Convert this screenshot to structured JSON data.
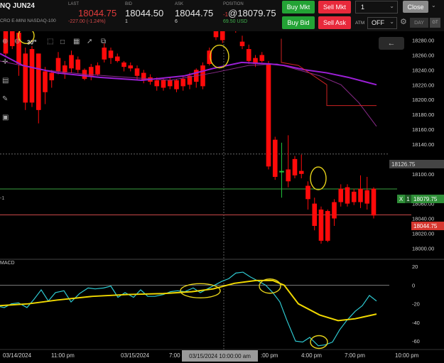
{
  "header": {
    "symbol": "NQ JUN24",
    "symbol_sub": "CRO E-MINI NASDAQ-100",
    "last_label": "LAST",
    "last_value": "18044.75",
    "last_change": "-227.00 (-1.24%)",
    "bid_label": "BID",
    "bid_value": "18044.50",
    "bid_size": "1",
    "ask_label": "ASK",
    "ask_value": "18044.75",
    "ask_size": "6",
    "position_label": "POSITION",
    "position_prefix": "-1",
    "position_value": "@18079.75",
    "position_pnl": "69.50 USD"
  },
  "order": {
    "buy_mkt": "Buy Mkt",
    "sell_mkt": "Sell Mkt",
    "buy_bid": "Buy Bid",
    "sell_ask": "Sell Ask",
    "quantity": "1",
    "close": "Close",
    "atm_label": "ATM",
    "atm_value": "OFF",
    "day_label": "DAY",
    "gtc_label": "GT"
  },
  "toolbar": {
    "interval": "30",
    "interval_sup": "m"
  },
  "price_axis": {
    "ticks": [
      "18280.00",
      "18260.00",
      "18240.00",
      "18220.00",
      "18200.00",
      "18180.00",
      "18160.00",
      "18140.00",
      "18100.00",
      "18060.00",
      "18040.00",
      "18020.00",
      "18000.00"
    ],
    "tick_values": [
      18280,
      18260,
      18240,
      18220,
      18200,
      18180,
      18160,
      18140,
      18100,
      18060,
      18040,
      18020,
      18000
    ],
    "crosshair_price": "18126.75",
    "position_price": "18079.75",
    "position_x_label": "X",
    "position_qty_label": "1",
    "last_price": "18044.75",
    "side_label": "-1"
  },
  "macd": {
    "label": "MACD",
    "ticks": [
      "20",
      "0",
      "-20",
      "-40",
      "-60"
    ],
    "tick_values": [
      20,
      0,
      -20,
      -40,
      -60
    ]
  },
  "time_axis": {
    "labels": [
      "03/14/2024",
      "11:00 pm",
      "03/15/2024",
      "7:00 am",
      ":00 pm",
      "4:00 pm",
      "7:00 pm",
      "10:00 pm"
    ],
    "crosshair_time": "03/15/2024 10:00:00 am"
  },
  "colors": {
    "bear": "#ff0a0a",
    "fast_ma": "#9b1fd6",
    "slow_ma": "#8a2a8a",
    "stop_line": "#cc2222",
    "macd_line": "#2ec8d0",
    "signal_line": "#f0d800",
    "highlight": "#e6d21a",
    "position_line": "#3aa040",
    "last_line": "#c84848"
  },
  "chart_data": {
    "type": "candlestick",
    "price_range": [
      17986,
      18292
    ],
    "macd_range": [
      -69,
      27
    ],
    "candles": [
      [
        18296,
        18310,
        18258,
        18262
      ],
      [
        18300,
        18310,
        18268,
        18272
      ],
      [
        18290,
        18298,
        18232,
        18248
      ],
      [
        18262,
        18270,
        18186,
        18196
      ],
      [
        18268,
        18272,
        18190,
        18196
      ],
      [
        18262,
        18262,
        18168,
        18186
      ],
      [
        18238,
        18244,
        18194,
        18210
      ],
      [
        18236,
        18240,
        18216,
        18226
      ],
      [
        18256,
        18264,
        18234,
        18238
      ],
      [
        18246,
        18252,
        18228,
        18236
      ],
      [
        18260,
        18266,
        18236,
        18242
      ],
      [
        18254,
        18258,
        18236,
        18240
      ],
      [
        18240,
        18242,
        18226,
        18228
      ],
      [
        18244,
        18248,
        18226,
        18232
      ],
      [
        18246,
        18250,
        18232,
        18234
      ],
      [
        18270,
        18276,
        18250,
        18254
      ],
      [
        18266,
        18270,
        18248,
        18256
      ],
      [
        18258,
        18262,
        18250,
        18252
      ],
      [
        18250,
        18252,
        18238,
        18244
      ],
      [
        18246,
        18250,
        18238,
        18242
      ],
      [
        18242,
        18246,
        18226,
        18232
      ],
      [
        18236,
        18240,
        18222,
        18226
      ],
      [
        18230,
        18234,
        18220,
        18224
      ],
      [
        18226,
        18230,
        18212,
        18218
      ],
      [
        18226,
        18228,
        18212,
        18216
      ],
      [
        18226,
        18230,
        18214,
        18218
      ],
      [
        18226,
        18228,
        18210,
        18214
      ],
      [
        18228,
        18232,
        18212,
        18218
      ],
      [
        18232,
        18236,
        18214,
        18220
      ],
      [
        18240,
        18242,
        18216,
        18224
      ],
      [
        18246,
        18250,
        18214,
        18218
      ],
      [
        18266,
        18270,
        18246,
        18248
      ],
      [
        18312,
        18316,
        18280,
        18284
      ],
      [
        18296,
        18298,
        18276,
        18280
      ],
      [
        18312,
        18314,
        18298,
        18302
      ],
      [
        18296,
        18300,
        18290,
        18294
      ],
      [
        18278,
        18286,
        18268,
        18272
      ],
      [
        18268,
        18274,
        18248,
        18252
      ],
      [
        18256,
        18260,
        18244,
        18248
      ],
      [
        18260,
        18264,
        18250,
        18252
      ],
      [
        18248,
        18252,
        18106,
        18110
      ],
      [
        18146,
        18150,
        18092,
        18096
      ],
      [
        18102,
        18142,
        18068,
        18104
      ],
      [
        18106,
        18152,
        18082,
        18090
      ],
      [
        18120,
        18124,
        18094,
        18098
      ],
      [
        18104,
        18126,
        18094,
        18100
      ],
      [
        18084,
        18090,
        18052,
        18066
      ],
      [
        18060,
        18068,
        18024,
        18030
      ],
      [
        18052,
        18056,
        18006,
        18010
      ],
      [
        18050,
        18052,
        18008,
        18010
      ],
      [
        18062,
        18066,
        18030,
        18040
      ],
      [
        18080,
        18086,
        18056,
        18062
      ],
      [
        18082,
        18086,
        18056,
        18060
      ],
      [
        18076,
        18080,
        18058,
        18062
      ],
      [
        18080,
        18098,
        18054,
        18062
      ],
      [
        18078,
        18096,
        18052,
        18060
      ],
      [
        18080,
        18082,
        18040,
        18044
      ]
    ],
    "fast_ma": [
      [
        0,
        18262
      ],
      [
        32,
        18246
      ],
      [
        80,
        18236
      ],
      [
        140,
        18230
      ],
      [
        200,
        18226
      ],
      [
        260,
        18232
      ],
      [
        300,
        18242
      ],
      [
        340,
        18250
      ],
      [
        380,
        18248
      ],
      [
        400,
        18246
      ],
      [
        430,
        18240
      ],
      [
        460,
        18236
      ],
      [
        490,
        18230
      ],
      [
        530,
        18220
      ]
    ],
    "slow_ma": [
      [
        0,
        18252
      ],
      [
        60,
        18240
      ],
      [
        120,
        18234
      ],
      [
        180,
        18230
      ],
      [
        240,
        18226
      ],
      [
        300,
        18236
      ],
      [
        350,
        18246
      ],
      [
        390,
        18248
      ],
      [
        420,
        18240
      ],
      [
        450,
        18232
      ],
      [
        480,
        18220
      ],
      [
        505,
        18196
      ],
      [
        530,
        18164
      ]
    ],
    "stop_line": [
      [
        396,
        18282
      ],
      [
        396,
        18250
      ],
      [
        420,
        18246
      ],
      [
        460,
        18220
      ],
      [
        460,
        18192
      ],
      [
        530,
        18192
      ]
    ],
    "macd": [
      [
        -16,
        -22
      ],
      [
        -6,
        -22
      ],
      [
        6,
        -24
      ],
      [
        16,
        -20
      ],
      [
        26,
        -19
      ],
      [
        38,
        -24
      ],
      [
        48,
        -15
      ],
      [
        58,
        -5
      ],
      [
        68,
        -17
      ],
      [
        78,
        -8
      ],
      [
        90,
        -6
      ],
      [
        100,
        -18
      ],
      [
        112,
        -9
      ],
      [
        124,
        -3
      ],
      [
        134,
        -4
      ],
      [
        146,
        -3
      ],
      [
        156,
        -1
      ],
      [
        166,
        -13
      ],
      [
        176,
        -8
      ],
      [
        188,
        -13
      ],
      [
        198,
        -5
      ],
      [
        208,
        -12
      ],
      [
        218,
        -12
      ],
      [
        230,
        -10
      ],
      [
        240,
        -7
      ],
      [
        250,
        -6
      ],
      [
        260,
        -7
      ],
      [
        272,
        -3
      ],
      [
        282,
        -8
      ],
      [
        292,
        -4
      ],
      [
        302,
        0
      ],
      [
        312,
        4
      ],
      [
        322,
        7
      ],
      [
        332,
        13
      ],
      [
        342,
        14
      ],
      [
        352,
        9
      ],
      [
        362,
        5
      ],
      [
        374,
        0
      ],
      [
        384,
        -8
      ],
      [
        394,
        -18
      ],
      [
        404,
        -38
      ],
      [
        416,
        -60
      ],
      [
        426,
        -61
      ],
      [
        436,
        -56
      ],
      [
        448,
        -65
      ],
      [
        458,
        -64
      ],
      [
        468,
        -61
      ],
      [
        478,
        -48
      ],
      [
        488,
        -38
      ],
      [
        500,
        -28
      ],
      [
        510,
        -22
      ],
      [
        520,
        -11
      ],
      [
        530,
        -17
      ]
    ],
    "signal": [
      [
        0,
        -22
      ],
      [
        40,
        -20
      ],
      [
        80,
        -16
      ],
      [
        130,
        -12
      ],
      [
        180,
        -10
      ],
      [
        230,
        -9
      ],
      [
        270,
        -7
      ],
      [
        300,
        -4
      ],
      [
        330,
        2
      ],
      [
        360,
        5
      ],
      [
        384,
        5
      ],
      [
        400,
        0
      ],
      [
        420,
        -20
      ],
      [
        450,
        -32
      ],
      [
        476,
        -38
      ],
      [
        500,
        -36
      ],
      [
        530,
        -31
      ]
    ],
    "highlights": [
      {
        "x": 37,
        "y": 18286,
        "rx": 11,
        "ry": 11,
        "pane": "price"
      },
      {
        "x": 309,
        "y": 18258,
        "rx": 13,
        "ry": 16,
        "pane": "price"
      },
      {
        "x": 448,
        "y": 18094,
        "rx": 11,
        "ry": 16,
        "pane": "price"
      },
      {
        "x": 282,
        "y": -6,
        "rx": 28,
        "ry": 10,
        "pane": "macd"
      },
      {
        "x": 380,
        "y": -1,
        "rx": 15,
        "ry": 10,
        "pane": "macd"
      },
      {
        "x": 449,
        "y": -61,
        "rx": 12,
        "ry": 9,
        "pane": "macd"
      }
    ]
  }
}
